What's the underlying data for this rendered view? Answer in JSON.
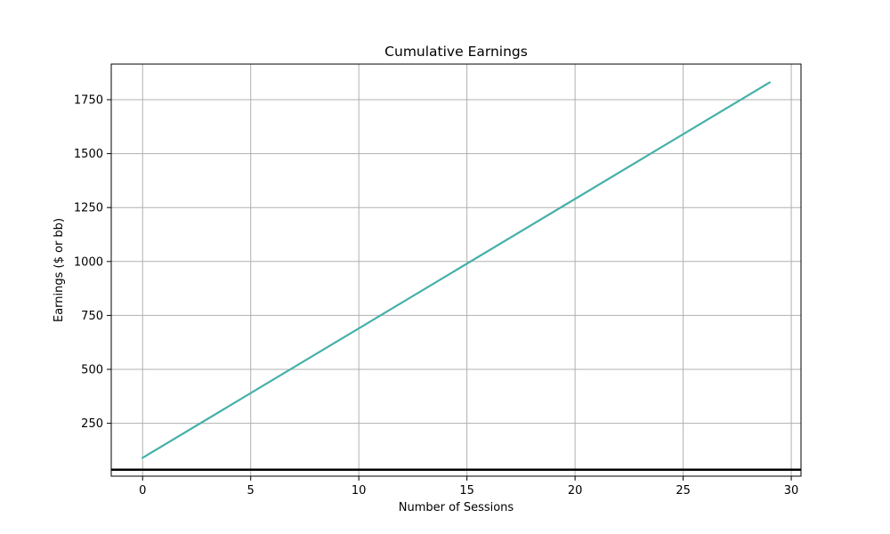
{
  "chart_data": {
    "type": "line",
    "title": "Cumulative Earnings",
    "xlabel": "Number of Sessions",
    "ylabel": "Earnings ($ or bb)",
    "xlim": [
      -1.45,
      30.45
    ],
    "ylim": [
      5,
      1915
    ],
    "xticks": [
      0,
      5,
      10,
      15,
      20,
      25,
      30
    ],
    "yticks": [
      250,
      500,
      750,
      1000,
      1250,
      1500,
      1750
    ],
    "grid": true,
    "legend": "none",
    "colors": {
      "series": "#45b0a8",
      "baseline": "#000000",
      "grid": "#b0b0b0",
      "frame": "#000000"
    },
    "baseline_y": 35,
    "series": [
      {
        "x": [
          0,
          29
        ],
        "values": [
          90,
          1830
        ]
      }
    ]
  }
}
